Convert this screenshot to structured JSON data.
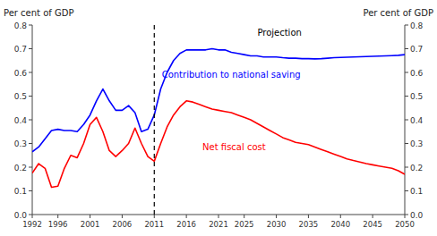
{
  "chart_data": {
    "type": "line",
    "y_label": "Per cent of GDP",
    "y2_label": "Per cent of GDP",
    "grid": false,
    "xlim": [
      1992,
      2050
    ],
    "xticks": [
      1992,
      1996,
      2001,
      2006,
      2011,
      2016,
      2021,
      2025,
      2030,
      2035,
      2040,
      2045,
      2050
    ],
    "ylim": [
      0.0,
      0.8
    ],
    "yticks": [
      {
        "value": 0.0,
        "label": "0.0"
      },
      0.1,
      0.2,
      0.3,
      0.4,
      0.5,
      0.6,
      0.7,
      0.8
    ],
    "y2lim": [
      0.0,
      0.8
    ],
    "y2ticks": [
      {
        "value": 0.0,
        "label": "0.0"
      },
      0.1,
      0.2,
      0.3,
      0.4,
      0.5,
      0.6,
      0.7,
      0.8
    ],
    "vline": 2011,
    "annotations": [
      {
        "text": "Projection"
      }
    ],
    "x": [
      1992,
      1993,
      1994,
      1995,
      1996,
      1997,
      1998,
      1999,
      2000,
      2001,
      2002,
      2003,
      2004,
      2005,
      2006,
      2007,
      2008,
      2009,
      2010,
      2011,
      2012,
      2013,
      2014,
      2015,
      2016,
      2017,
      2018,
      2019,
      2020,
      2021,
      2022,
      2023,
      2024,
      2025,
      2026,
      2027,
      2028,
      2029,
      2030,
      2031,
      2032,
      2033,
      2034,
      2035,
      2036,
      2037,
      2038,
      2039,
      2040,
      2041,
      2042,
      2043,
      2044,
      2045,
      2046,
      2047,
      2048,
      2049,
      2050
    ],
    "series": [
      {
        "name": "Contribution to national saving",
        "color": "#0000FF",
        "values": [
          0.265,
          0.285,
          0.32,
          0.355,
          0.36,
          0.355,
          0.355,
          0.35,
          0.38,
          0.42,
          0.48,
          0.53,
          0.48,
          0.44,
          0.44,
          0.46,
          0.43,
          0.35,
          0.36,
          0.42,
          0.53,
          0.6,
          0.65,
          0.68,
          0.695,
          0.695,
          0.695,
          0.695,
          0.7,
          0.695,
          0.695,
          0.685,
          0.68,
          0.675,
          0.67,
          0.67,
          0.665,
          0.665,
          0.665,
          0.662,
          0.66,
          0.66,
          0.658,
          0.658,
          0.657,
          0.658,
          0.66,
          0.662,
          0.663,
          0.664,
          0.665,
          0.666,
          0.667,
          0.668,
          0.669,
          0.67,
          0.671,
          0.672,
          0.675
        ]
      },
      {
        "name": "Net fiscal cost",
        "color": "#FF0000",
        "values": [
          0.175,
          0.215,
          0.195,
          0.115,
          0.12,
          0.195,
          0.25,
          0.24,
          0.3,
          0.38,
          0.41,
          0.35,
          0.27,
          0.245,
          0.27,
          0.3,
          0.365,
          0.3,
          0.245,
          0.225,
          0.3,
          0.37,
          0.42,
          0.455,
          0.48,
          0.475,
          0.465,
          0.455,
          0.445,
          0.44,
          0.435,
          0.43,
          0.42,
          0.41,
          0.4,
          0.385,
          0.37,
          0.355,
          0.34,
          0.325,
          0.315,
          0.305,
          0.3,
          0.295,
          0.285,
          0.275,
          0.265,
          0.255,
          0.245,
          0.235,
          0.228,
          0.222,
          0.215,
          0.21,
          0.205,
          0.2,
          0.195,
          0.185,
          0.17
        ]
      }
    ]
  }
}
